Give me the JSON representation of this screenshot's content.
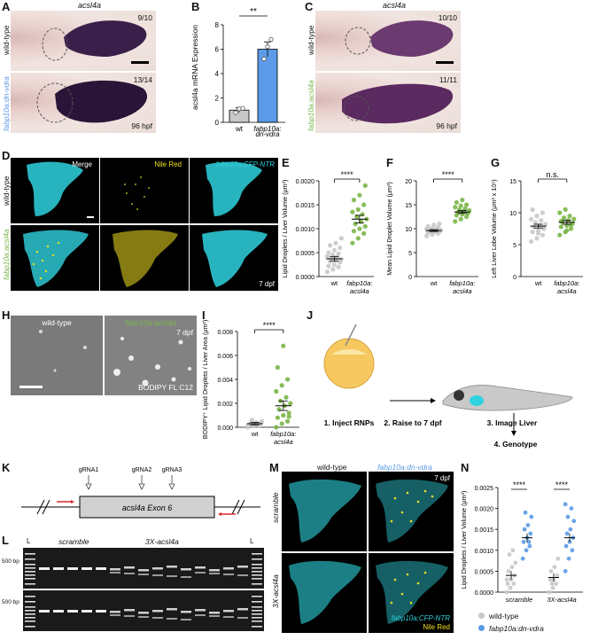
{
  "panels": {
    "A": {
      "label": "A",
      "title": "acsl4a",
      "row1": "wild-type",
      "row2": "fabp10a:dn-vdra",
      "count1": "9/10",
      "count2": "13/14",
      "stage": "96 hpf"
    },
    "B": {
      "label": "B",
      "ylabel": "acsl4a mRNA Expression",
      "sig": "**"
    },
    "C": {
      "label": "C",
      "title": "acsl4a",
      "row1": "wild-type",
      "row2": "fabp10a:acsl4a",
      "count1": "10/10",
      "count2": "11/11",
      "stage": "96 hpf"
    },
    "D": {
      "label": "D",
      "col1": "Merge",
      "col2": "Nile Red",
      "col3": "fabp10a:CFP-NTR",
      "row1": "wild-type",
      "row2": "fabp10a:acsl4a",
      "stage": "7 dpf"
    },
    "E": {
      "label": "E",
      "ylabel": "Lipid Droplets / Liver Volume (μm³)",
      "sig": "****"
    },
    "F": {
      "label": "F",
      "ylabel": "Mean Lipid Droplet Volume (μm³)",
      "sig": "****"
    },
    "G": {
      "label": "G",
      "ylabel": "Left Liver Lobe Volume (μm³ x 10⁶)",
      "sig": "n.s."
    },
    "H": {
      "label": "H",
      "left": "wild-type",
      "right": "fabp10a:acsl4a",
      "stage": "7 dpf",
      "stain": "BODIPY FL C12"
    },
    "I": {
      "label": "I",
      "ylabel": "BODIPY⁺ Lipid Droplets / Liver Area (μm²)",
      "sig": "****"
    },
    "J": {
      "label": "J",
      "step1": "1. Inject RNPs",
      "step2": "2. Raise to 7 dpf",
      "step3": "3. Image Liver",
      "step4": "4. Genotype"
    },
    "K": {
      "label": "K",
      "exon": "acsl4a Exon 6",
      "g1": "gRNA1",
      "g2": "gRNA2",
      "g3": "gRNA3"
    },
    "L": {
      "label": "L",
      "ladder": "L",
      "grp1": "scramble",
      "grp2": "3X-acsl4a",
      "bp1": "500 bp",
      "bp2": "500 bp"
    },
    "M": {
      "label": "M",
      "col1": "wild-type",
      "col2": "fabp10a:dn-vdra",
      "row1": "scramble",
      "row2": "3X-acsl4a",
      "stage": "7 dpf",
      "legend1": "fabp10a:CFP-NTR",
      "legend2": "Nile Red"
    },
    "N": {
      "label": "N",
      "ylabel": "Lipid Droplets / Liver Volume (μm³)",
      "sig1": "****",
      "sig2": "****",
      "leg_wt": "wild-type",
      "leg_dn": "fabp10a:dn-vdra"
    }
  },
  "colors": {
    "gray": "#c8c8c8",
    "blue": "#5b9ae6",
    "green": "#7ab648",
    "cyan": "#2fd3e0",
    "yellow": "#f2e020",
    "red": "#d8272f"
  },
  "chart_data": [
    {
      "type": "bar",
      "id": "B",
      "categories": [
        "wt",
        "fabp10a: dn-vdra"
      ],
      "values": [
        1.0,
        6.0
      ],
      "errors": [
        0.2,
        0.6
      ],
      "points": [
        [
          0.8,
          1.1,
          1.15
        ],
        [
          5.2,
          6.2,
          6.8
        ]
      ],
      "ylim": [
        0,
        8
      ],
      "yticks": [
        0,
        2,
        4,
        6,
        8
      ],
      "ylabel": "acsl4a mRNA Expression",
      "bar_colors": [
        "#c8c8c8",
        "#5b9ae6"
      ]
    },
    {
      "type": "scatter",
      "id": "E",
      "categories": [
        "wt",
        "fabp10a: acsl4a"
      ],
      "means": [
        0.00037,
        0.0012
      ],
      "sem": [
        5e-05,
        8e-05
      ],
      "points": [
        [
          0.0001,
          0.00015,
          0.0002,
          0.00022,
          0.00025,
          0.0003,
          0.00032,
          0.00035,
          0.00036,
          0.00038,
          0.0004,
          0.00042,
          0.00045,
          0.00048,
          0.0005,
          0.00055,
          0.0006,
          0.00065,
          0.0007,
          0.0008
        ],
        [
          0.0007,
          0.0008,
          0.0009,
          0.00095,
          0.001,
          0.00105,
          0.0011,
          0.00115,
          0.0012,
          0.00125,
          0.0013,
          0.00135,
          0.0014,
          0.0015,
          0.0016,
          0.0017,
          0.0019
        ]
      ],
      "ylim": [
        0,
        0.002
      ],
      "yticks": [
        0,
        0.0005,
        0.001,
        0.0015,
        0.002
      ],
      "ytick_labels": [
        "0.0000",
        "0.0005",
        "0.0010",
        "0.0015",
        "0.0020"
      ],
      "colors": [
        "#c8c8c8",
        "#7ab648"
      ]
    },
    {
      "type": "scatter",
      "id": "F",
      "categories": [
        "wt",
        "fabp10a: acsl4a"
      ],
      "means": [
        9.6,
        13.5
      ],
      "sem": [
        0.2,
        0.3
      ],
      "points": [
        [
          8.5,
          8.8,
          9.0,
          9.2,
          9.3,
          9.4,
          9.5,
          9.6,
          9.7,
          9.8,
          9.9,
          10.0,
          10.1,
          10.3,
          10.5,
          10.8,
          11.0
        ],
        [
          11.5,
          12.0,
          12.5,
          12.8,
          13.0,
          13.2,
          13.4,
          13.6,
          13.8,
          14.0,
          14.2,
          14.5,
          14.8,
          15.0,
          15.5,
          16.0
        ]
      ],
      "ylim": [
        0,
        20
      ],
      "yticks": [
        0,
        5,
        10,
        15,
        20
      ],
      "ytick_labels": [
        "0",
        "5",
        "10",
        "15",
        "20"
      ],
      "colors": [
        "#c8c8c8",
        "#7ab648"
      ]
    },
    {
      "type": "scatter",
      "id": "G",
      "categories": [
        "wt",
        "fabp10a: acsl4a"
      ],
      "means": [
        7.9,
        8.5
      ],
      "sem": [
        0.3,
        0.3
      ],
      "points": [
        [
          5.5,
          6.0,
          6.5,
          7.0,
          7.2,
          7.5,
          7.8,
          8.0,
          8.2,
          8.5,
          8.8,
          9.0,
          9.5,
          10.0,
          10.5,
          6.8,
          7.6
        ],
        [
          6.5,
          7.0,
          7.5,
          7.8,
          8.0,
          8.3,
          8.5,
          8.8,
          9.0,
          9.2,
          9.5,
          10.0,
          10.5,
          8.1,
          8.7,
          7.2
        ]
      ],
      "ylim": [
        0,
        15
      ],
      "yticks": [
        0,
        5,
        10,
        15
      ],
      "ytick_labels": [
        "0",
        "5",
        "10",
        "15"
      ],
      "colors": [
        "#c8c8c8",
        "#7ab648"
      ]
    },
    {
      "type": "scatter",
      "id": "I",
      "categories": [
        "wt",
        "fabp10a: acsl4a"
      ],
      "means": [
        0.0003,
        0.0018
      ],
      "sem": [
        0.0001,
        0.0004
      ],
      "points": [
        [
          0.0,
          0.0001,
          0.0001,
          0.0002,
          0.0002,
          0.0003,
          0.0003,
          0.0004,
          0.0005,
          0.0006,
          0.0002,
          0.0001
        ],
        [
          0.0,
          0.0003,
          0.0005,
          0.0008,
          0.001,
          0.0012,
          0.0015,
          0.0018,
          0.002,
          0.0022,
          0.0025,
          0.003,
          0.0035,
          0.004,
          0.005,
          0.0068,
          0.0009
        ]
      ],
      "ylim": [
        0,
        0.008
      ],
      "yticks": [
        0,
        0.002,
        0.004,
        0.006,
        0.008
      ],
      "ytick_labels": [
        "0.000",
        "0.002",
        "0.004",
        "0.006",
        "0.008"
      ],
      "colors": [
        "#c8c8c8",
        "#7ab648"
      ]
    },
    {
      "type": "scatter",
      "id": "N",
      "categories": [
        "scramble",
        "3X-acsl4a"
      ],
      "series": [
        {
          "name": "wild-type",
          "color": "#c8c8c8",
          "means": [
            0.0004,
            0.00035
          ],
          "sem": [
            0.0001,
            0.0001
          ],
          "points": [
            [
              0.0,
              0.0001,
              0.0002,
              0.0002,
              0.0003,
              0.0004,
              0.0005,
              0.0006,
              0.0007,
              0.0009,
              0.001,
              0.0003
            ],
            [
              0.0,
              0.0001,
              0.0002,
              0.0003,
              0.0003,
              0.0004,
              0.0005,
              0.0006,
              0.0008,
              0.0002
            ]
          ]
        },
        {
          "name": "fabp10a:dn-vdra",
          "color": "#5b9ae6",
          "means": [
            0.0013,
            0.0013
          ],
          "sem": [
            0.0001,
            0.0001
          ],
          "points": [
            [
              0.0008,
              0.001,
              0.0011,
              0.0012,
              0.0013,
              0.0014,
              0.0015,
              0.0016,
              0.0018,
              0.0019,
              0.0012
            ],
            [
              0.0005,
              0.0008,
              0.001,
              0.0011,
              0.0012,
              0.0013,
              0.0014,
              0.0015,
              0.0017,
              0.0018,
              0.002,
              0.0021
            ]
          ]
        }
      ],
      "ylim": [
        0,
        0.0025
      ],
      "yticks": [
        0,
        0.0005,
        0.001,
        0.0015,
        0.002,
        0.0025
      ],
      "ytick_labels": [
        "0.0000",
        "0.0005",
        "0.0010",
        "0.0015",
        "0.0020",
        "0.0025"
      ]
    }
  ]
}
